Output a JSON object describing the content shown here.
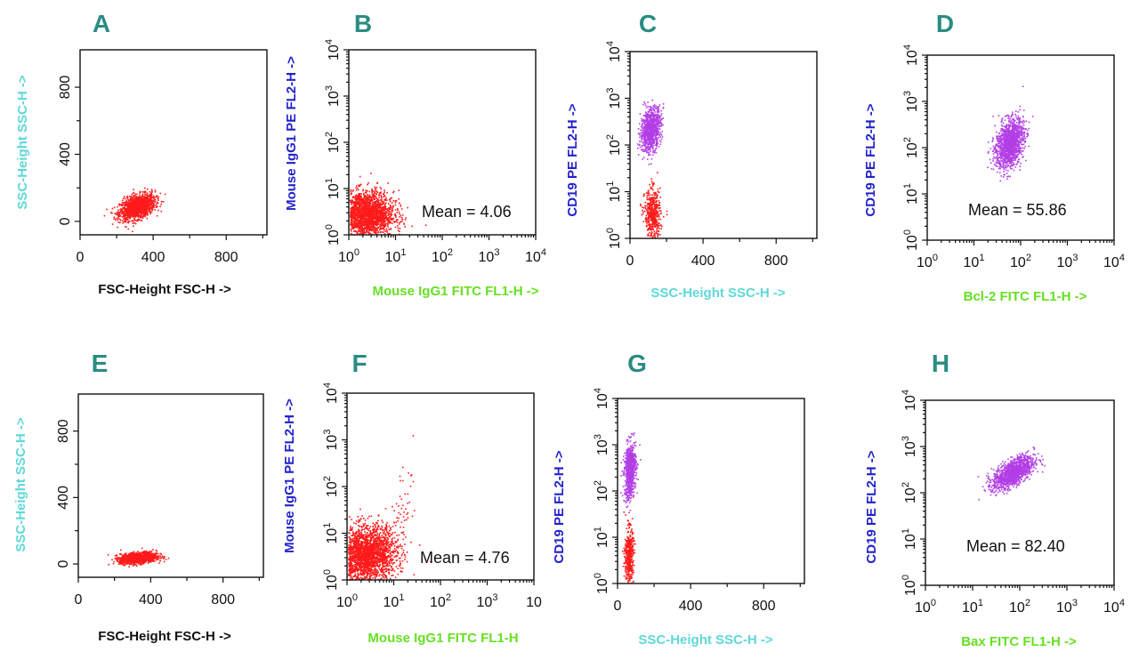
{
  "figure": {
    "colors": {
      "letter": "#2a8c82",
      "cyan": "#5fd8d8",
      "blue": "#2222cc",
      "green": "#66e022",
      "red": "#ff1a1a",
      "magenta": "#b23ee6"
    }
  },
  "chart_data": [
    {
      "panel": "A",
      "type": "scatter",
      "xlabel": "FSC-Height FSC-H ->",
      "ylabel": "SSC-Height SSC-H ->",
      "xscale": "linear",
      "yscale": "linear",
      "xlim": [
        0,
        1023
      ],
      "ylim": [
        -80,
        1023
      ],
      "xticks": [
        "0",
        "400",
        "800"
      ],
      "yticks": [
        "0",
        "400",
        "800"
      ],
      "xlabel_color": "#111111",
      "ylabel_color": "#5fd8d8",
      "dot_color": "#ff1a1a",
      "clusters": [
        {
          "cx": 310,
          "cy": 90,
          "sx": 48,
          "sy": 34,
          "tilt": 0.45,
          "n": 1400
        }
      ]
    },
    {
      "panel": "B",
      "type": "scatter",
      "xlabel": "Mouse IgG1 FITC FL1-H ->",
      "ylabel": "Mouse IgG1 PE FL2-H ->",
      "xscale": "log",
      "yscale": "log",
      "xlim": [
        1,
        10000
      ],
      "ylim": [
        1,
        10000
      ],
      "xticks": [
        "10^0",
        "10^1",
        "10^2",
        "10^3",
        "10^4"
      ],
      "yticks": [
        "10^0",
        "10^1",
        "10^2",
        "10^3",
        "10^4"
      ],
      "xlabel_color": "#66e022",
      "ylabel_color": "#2222cc",
      "dot_color": "#ff1a1a",
      "annotation": "Mean = 4.06",
      "clusters": [
        {
          "cx": 0.35,
          "cy": 0.45,
          "sx": 0.3,
          "sy": 0.25,
          "tilt": 0,
          "n": 2200
        }
      ]
    },
    {
      "panel": "C",
      "type": "scatter",
      "xlabel": "SSC-Height SSC-H ->",
      "ylabel": "CD19 PE FL2-H ->",
      "xscale": "linear",
      "yscale": "log",
      "xlim": [
        0,
        1023
      ],
      "ylim": [
        1,
        10000
      ],
      "xticks": [
        "0",
        "400",
        "800"
      ],
      "yticks": [
        "10^0",
        "10^1",
        "10^2",
        "10^3",
        "10^4"
      ],
      "xlabel_color": "#5fd8d8",
      "ylabel_color": "#2222cc",
      "dot_color": "#b23ee6",
      "clusters": [
        {
          "cx": 110,
          "cy": 2.35,
          "sx": 28,
          "sy": 0.22,
          "tilt": 0.3,
          "n": 900
        },
        {
          "cx": 120,
          "cy": 0.5,
          "sx": 22,
          "sy": 0.28,
          "tilt": 0,
          "n": 500,
          "color": "#ff1a1a"
        }
      ]
    },
    {
      "panel": "D",
      "type": "scatter",
      "xlabel": "Bcl-2 FITC FL1-H ->",
      "ylabel": "CD19 PE FL2-H ->",
      "xscale": "log",
      "yscale": "log",
      "xlim": [
        1,
        10000
      ],
      "ylim": [
        1,
        10000
      ],
      "xticks": [
        "10^0",
        "10^1",
        "10^2",
        "10^3",
        "10^4"
      ],
      "yticks": [
        "10^0",
        "10^1",
        "10^2",
        "10^3",
        "10^4"
      ],
      "xlabel_color": "#66e022",
      "ylabel_color": "#2222cc",
      "dot_color": "#b23ee6",
      "annotation": "Mean = 55.86",
      "clusters": [
        {
          "cx": 1.75,
          "cy": 2.1,
          "sx": 0.15,
          "sy": 0.25,
          "tilt": 0.35,
          "n": 1300
        }
      ]
    },
    {
      "panel": "E",
      "type": "scatter",
      "xlabel": "FSC-Height FSC-H ->",
      "ylabel": "SSC-Height SSC-H ->",
      "xscale": "linear",
      "yscale": "linear",
      "xlim": [
        0,
        1023
      ],
      "ylim": [
        -80,
        1023
      ],
      "xticks": [
        "0",
        "400",
        "800"
      ],
      "yticks": [
        "0",
        "400",
        "800"
      ],
      "xlabel_color": "#111111",
      "ylabel_color": "#5fd8d8",
      "dot_color": "#ff1a1a",
      "clusters": [
        {
          "cx": 330,
          "cy": 40,
          "sx": 50,
          "sy": 16,
          "tilt": 0.28,
          "n": 1300
        }
      ]
    },
    {
      "panel": "F",
      "type": "scatter",
      "xlabel": "Mouse IgG1 FITC FL1-H",
      "ylabel": "Mouse IgG1 PE FL2-H ->",
      "xscale": "log",
      "yscale": "log",
      "xlim": [
        1,
        10000
      ],
      "ylim": [
        1,
        10000
      ],
      "xticks": [
        "10^0",
        "10^1",
        "10^2",
        "10^3",
        "10"
      ],
      "yticks": [
        "10^0",
        "10^1",
        "10^2",
        "10^3",
        "10^4"
      ],
      "xlabel_color": "#66e022",
      "ylabel_color": "#2222cc",
      "dot_color": "#ff1a1a",
      "annotation": "Mean = 4.76",
      "clusters": [
        {
          "cx": 0.4,
          "cy": 0.55,
          "sx": 0.32,
          "sy": 0.3,
          "tilt": 0.1,
          "n": 2400
        },
        {
          "cx": 1.1,
          "cy": 1.3,
          "sx": 0.25,
          "sy": 0.4,
          "tilt": 1.0,
          "n": 60
        }
      ]
    },
    {
      "panel": "G",
      "type": "scatter",
      "xlabel": "SSC-Height SSC-H ->",
      "ylabel": "CD19 PE FL2-H ->",
      "xscale": "linear",
      "yscale": "log",
      "xlim": [
        0,
        1023
      ],
      "ylim": [
        1,
        10000
      ],
      "xticks": [
        "0",
        "400",
        "800"
      ],
      "yticks": [
        "10^0",
        "10^1",
        "10^2",
        "10^3",
        "10^4"
      ],
      "xlabel_color": "#5fd8d8",
      "ylabel_color": "#2222cc",
      "dot_color": "#b23ee6",
      "clusters": [
        {
          "cx": 65,
          "cy": 2.45,
          "sx": 16,
          "sy": 0.3,
          "tilt": 0.2,
          "n": 700
        },
        {
          "cx": 60,
          "cy": 0.6,
          "sx": 12,
          "sy": 0.3,
          "tilt": 0,
          "n": 450,
          "color": "#ff1a1a"
        }
      ]
    },
    {
      "panel": "H",
      "type": "scatter",
      "xlabel": "Bax FITC FL1-H ->",
      "ylabel": "CD19 PE FL2-H ->",
      "xscale": "log",
      "yscale": "log",
      "xlim": [
        1,
        10000
      ],
      "ylim": [
        1,
        10000
      ],
      "xticks": [
        "10^0",
        "10^1",
        "10^2",
        "10^3",
        "10^4"
      ],
      "yticks": [
        "10^0",
        "10^1",
        "10^2",
        "10^3",
        "10^4"
      ],
      "xlabel_color": "#66e022",
      "ylabel_color": "#2222cc",
      "dot_color": "#b23ee6",
      "annotation": "Mean = 82.40",
      "clusters": [
        {
          "cx": 1.85,
          "cy": 2.45,
          "sx": 0.22,
          "sy": 0.14,
          "tilt": 0.8,
          "n": 1200
        }
      ]
    }
  ]
}
